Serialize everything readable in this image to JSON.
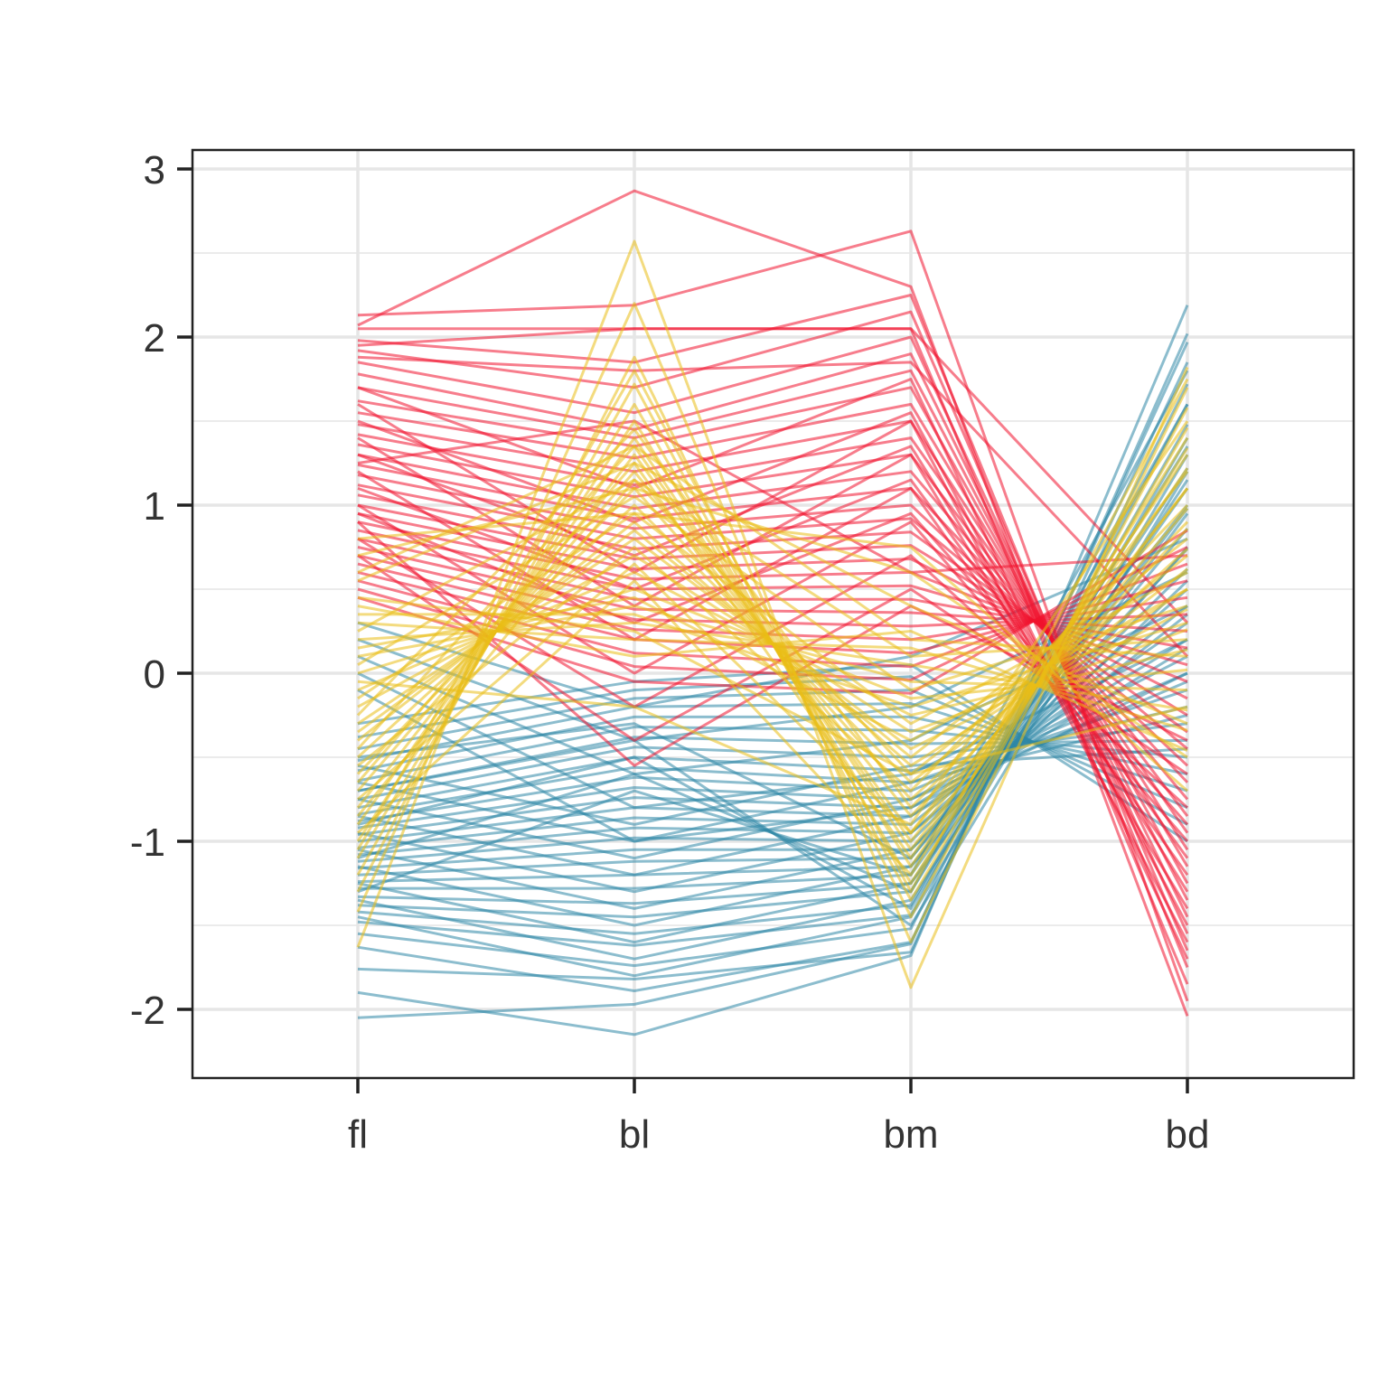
{
  "chart_data": {
    "type": "line",
    "variant": "parallel-coordinates",
    "title": "",
    "xlabel": "",
    "ylabel": "",
    "categories": [
      "fl",
      "bl",
      "bm",
      "bd"
    ],
    "ylim": [
      -2.4,
      3.1
    ],
    "yticks": [
      -2,
      -1,
      0,
      1,
      2,
      3
    ],
    "ytick_labels": [
      "-2",
      "-1",
      "0",
      "1",
      "2",
      "3"
    ],
    "grid": true,
    "legend": "none",
    "groups": [
      {
        "color": "#2e86a6",
        "lines": [
          [
            -2.05,
            -1.97,
            -1.61,
            1.97
          ],
          [
            -1.9,
            -2.15,
            -1.68,
            2.19
          ],
          [
            -1.76,
            -1.82,
            -1.66,
            2.02
          ],
          [
            -1.63,
            -1.89,
            -1.6,
            1.85
          ],
          [
            -1.55,
            -1.74,
            -1.52,
            1.72
          ],
          [
            -1.48,
            -1.62,
            -1.44,
            1.6
          ],
          [
            -1.42,
            -1.55,
            -1.38,
            1.48
          ],
          [
            -1.38,
            -1.45,
            -1.3,
            1.35
          ],
          [
            -1.33,
            -1.37,
            -1.25,
            1.22
          ],
          [
            -1.28,
            -1.28,
            -1.2,
            1.1
          ],
          [
            -1.24,
            -1.2,
            -1.15,
            0.98
          ],
          [
            -1.2,
            -1.12,
            -1.1,
            0.86
          ],
          [
            -1.16,
            -1.05,
            -1.05,
            0.74
          ],
          [
            -1.12,
            -0.98,
            -1.0,
            0.62
          ],
          [
            -1.08,
            -0.92,
            -0.95,
            0.5
          ],
          [
            -1.04,
            -0.86,
            -0.9,
            0.4
          ],
          [
            -1.0,
            -0.8,
            -0.85,
            0.3
          ],
          [
            -0.96,
            -0.74,
            -0.8,
            0.2
          ],
          [
            -0.92,
            -0.68,
            -0.75,
            0.1
          ],
          [
            -0.88,
            -0.62,
            -0.7,
            0.0
          ],
          [
            -0.84,
            -0.56,
            -0.65,
            -0.1
          ],
          [
            -0.8,
            -0.5,
            -0.58,
            -0.2
          ],
          [
            -0.75,
            -0.44,
            -0.5,
            -0.3
          ],
          [
            -0.7,
            -0.38,
            -0.42,
            -0.4
          ],
          [
            -0.64,
            -0.32,
            -0.34,
            -0.5
          ],
          [
            -0.58,
            -0.26,
            -0.26,
            -0.6
          ],
          [
            -0.52,
            -0.2,
            -0.18,
            -0.7
          ],
          [
            -0.45,
            -0.15,
            -0.1,
            -0.8
          ],
          [
            -0.38,
            -0.1,
            -0.02,
            -0.9
          ],
          [
            -0.3,
            -0.05,
            0.05,
            -1.0
          ],
          [
            -1.45,
            -1.8,
            -1.45,
            1.3
          ],
          [
            -1.35,
            -1.7,
            -1.35,
            1.15
          ],
          [
            -1.25,
            -1.6,
            -1.25,
            0.95
          ],
          [
            -1.15,
            -1.5,
            -1.15,
            0.75
          ],
          [
            -1.05,
            -1.4,
            -1.05,
            0.55
          ],
          [
            -0.95,
            -1.3,
            -0.95,
            0.35
          ],
          [
            -0.85,
            -1.2,
            -0.85,
            0.15
          ],
          [
            -0.75,
            -1.1,
            -0.75,
            -0.05
          ],
          [
            -0.65,
            -1.0,
            -0.65,
            -0.25
          ],
          [
            -0.55,
            -0.9,
            -0.55,
            -0.45
          ],
          [
            -1.3,
            -0.7,
            -1.2,
            1.8
          ],
          [
            -1.1,
            -0.6,
            -1.3,
            1.6
          ],
          [
            -0.9,
            -0.5,
            -1.4,
            1.4
          ],
          [
            -0.7,
            -0.4,
            -1.5,
            1.2
          ],
          [
            -0.5,
            -0.3,
            -1.1,
            1.0
          ],
          [
            0.3,
            -0.2,
            0.1,
            0.8
          ],
          [
            0.2,
            -0.4,
            -0.2,
            0.6
          ],
          [
            0.1,
            -0.6,
            -0.4,
            0.4
          ],
          [
            0.0,
            -0.8,
            -0.6,
            0.2
          ],
          [
            -0.1,
            -1.0,
            -0.8,
            0.0
          ]
        ]
      },
      {
        "color": "#f0132e",
        "lines": [
          [
            2.07,
            2.87,
            2.3,
            -2.04
          ],
          [
            2.13,
            2.19,
            2.63,
            -1.95
          ],
          [
            2.05,
            2.05,
            2.05,
            -1.85
          ],
          [
            1.98,
            1.85,
            2.25,
            -1.75
          ],
          [
            1.92,
            1.7,
            2.15,
            -1.65
          ],
          [
            1.85,
            1.55,
            2.0,
            -1.55
          ],
          [
            1.78,
            1.45,
            1.9,
            -1.45
          ],
          [
            1.7,
            1.4,
            1.8,
            -1.35
          ],
          [
            1.62,
            1.35,
            1.7,
            -1.25
          ],
          [
            1.55,
            1.28,
            1.6,
            -1.15
          ],
          [
            1.48,
            1.2,
            1.5,
            -1.05
          ],
          [
            1.42,
            1.12,
            1.4,
            -0.95
          ],
          [
            1.36,
            1.05,
            1.3,
            -0.85
          ],
          [
            1.3,
            0.98,
            1.2,
            -0.75
          ],
          [
            1.24,
            0.92,
            1.1,
            -0.65
          ],
          [
            1.18,
            0.86,
            1.0,
            -0.55
          ],
          [
            1.12,
            0.8,
            0.92,
            -0.45
          ],
          [
            1.06,
            0.74,
            0.84,
            -0.35
          ],
          [
            1.0,
            0.68,
            0.76,
            -0.25
          ],
          [
            0.95,
            0.62,
            0.68,
            -0.15
          ],
          [
            0.9,
            0.56,
            0.6,
            -0.05
          ],
          [
            0.85,
            0.5,
            0.52,
            0.05
          ],
          [
            0.8,
            0.44,
            0.44,
            0.15
          ],
          [
            0.75,
            0.38,
            0.36,
            0.25
          ],
          [
            0.7,
            0.32,
            0.28,
            0.35
          ],
          [
            0.65,
            0.26,
            0.2,
            0.45
          ],
          [
            0.6,
            0.2,
            0.12,
            0.55
          ],
          [
            0.55,
            0.12,
            0.04,
            0.65
          ],
          [
            0.5,
            0.04,
            -0.04,
            0.75
          ],
          [
            0.45,
            -0.05,
            -0.12,
            0.85
          ],
          [
            1.6,
            0.6,
            1.5,
            -1.6
          ],
          [
            1.4,
            0.4,
            1.3,
            -1.4
          ],
          [
            1.2,
            0.2,
            1.1,
            -1.2
          ],
          [
            1.0,
            0.0,
            0.9,
            -1.0
          ],
          [
            0.8,
            -0.2,
            0.7,
            -0.8
          ],
          [
            0.7,
            -0.4,
            0.5,
            -0.6
          ],
          [
            0.9,
            -0.55,
            0.4,
            -0.4
          ],
          [
            1.7,
            1.1,
            1.75,
            -1.7
          ],
          [
            1.5,
            0.9,
            1.55,
            -1.5
          ],
          [
            1.3,
            0.7,
            1.35,
            -1.3
          ],
          [
            1.1,
            0.5,
            1.15,
            -1.1
          ],
          [
            0.95,
            0.3,
            0.95,
            -0.9
          ],
          [
            1.95,
            2.05,
            2.05,
            0.3
          ],
          [
            1.88,
            1.8,
            1.85,
            0.1
          ],
          [
            1.25,
            1.5,
            0.6,
            0.7
          ]
        ]
      },
      {
        "color": "#e9bd15",
        "lines": [
          [
            -1.63,
            2.57,
            -1.87,
            1.82
          ],
          [
            -1.42,
            2.2,
            -1.6,
            1.7
          ],
          [
            -1.3,
            1.88,
            -1.45,
            1.58
          ],
          [
            -1.2,
            1.72,
            -1.35,
            1.46
          ],
          [
            -1.1,
            1.6,
            -1.25,
            1.34
          ],
          [
            -1.0,
            1.5,
            -1.15,
            1.22
          ],
          [
            -0.9,
            1.4,
            -1.05,
            1.1
          ],
          [
            -0.8,
            1.3,
            -0.95,
            0.98
          ],
          [
            -0.7,
            1.2,
            -0.85,
            0.86
          ],
          [
            -0.6,
            1.1,
            -0.75,
            0.74
          ],
          [
            -0.5,
            1.0,
            -0.65,
            0.62
          ],
          [
            -0.4,
            0.9,
            -0.55,
            0.5
          ],
          [
            -0.3,
            0.8,
            -0.45,
            0.38
          ],
          [
            -0.2,
            0.7,
            -0.35,
            0.26
          ],
          [
            -0.1,
            0.6,
            -0.25,
            0.14
          ],
          [
            0.0,
            0.5,
            -0.15,
            0.02
          ],
          [
            0.1,
            0.4,
            -0.05,
            -0.1
          ],
          [
            0.2,
            0.3,
            0.05,
            -0.22
          ],
          [
            0.3,
            0.2,
            0.15,
            -0.34
          ],
          [
            0.4,
            0.1,
            0.25,
            -0.46
          ],
          [
            0.55,
            1.25,
            0.4,
            -0.3
          ],
          [
            0.7,
            1.1,
            0.6,
            -0.5
          ],
          [
            0.8,
            0.95,
            0.75,
            -0.7
          ],
          [
            -0.95,
            0.55,
            -1.2,
            1.4
          ],
          [
            -0.75,
            0.65,
            -0.95,
            1.2
          ],
          [
            -0.55,
            0.75,
            -0.7,
            1.0
          ],
          [
            -0.35,
            0.85,
            -0.5,
            0.8
          ],
          [
            -0.15,
            0.95,
            -0.3,
            0.6
          ],
          [
            0.05,
            1.05,
            -0.1,
            0.4
          ],
          [
            0.25,
            1.15,
            0.1,
            0.2
          ],
          [
            -0.25,
            1.45,
            -0.8,
            0.9
          ],
          [
            -0.45,
            1.35,
            -1.0,
            1.1
          ],
          [
            -0.65,
            1.25,
            -1.1,
            1.3
          ],
          [
            -0.85,
            1.15,
            -0.6,
            0.7
          ],
          [
            0.15,
            0.45,
            -0.4,
            0.5
          ],
          [
            0.35,
            0.35,
            -0.2,
            0.3
          ],
          [
            -0.05,
            -0.2,
            -0.9,
            1.5
          ],
          [
            -1.05,
            1.8,
            -1.3,
            1.75
          ],
          [
            0.6,
            1.35,
            0.2,
            0.1
          ],
          [
            0.45,
            0.25,
            -0.6,
            -0.2
          ]
        ]
      }
    ]
  }
}
